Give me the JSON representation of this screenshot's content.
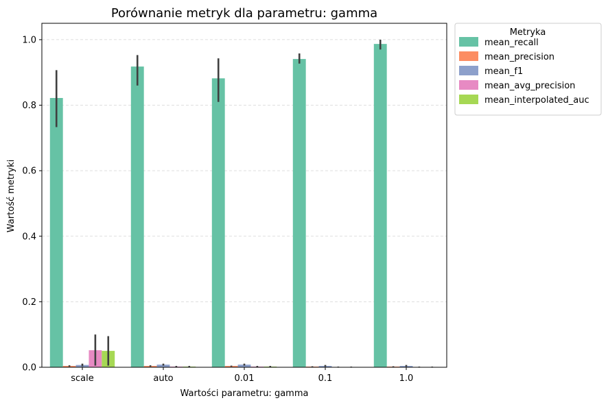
{
  "chart_data": {
    "type": "bar",
    "title": "Porównanie metryk dla parametru: gamma",
    "xlabel": "Wartości parametru: gamma",
    "ylabel": "Wartość metryki",
    "categories": [
      "scale",
      "auto",
      "0.01",
      "0.1",
      "1.0"
    ],
    "ylim": [
      0,
      1.05
    ],
    "yticks": [
      "0.0",
      "0.2",
      "0.4",
      "0.6",
      "0.8",
      "1.0"
    ],
    "grid": "horizontal dashed",
    "legend": {
      "title": "Metryka",
      "placement": "outside top-right"
    },
    "series": [
      {
        "name": "mean_recall",
        "color": "#66c2a5",
        "values": [
          0.822,
          0.918,
          0.882,
          0.941,
          0.987
        ],
        "err_low": [
          0.733,
          0.86,
          0.81,
          0.927,
          0.97
        ],
        "err_high": [
          0.907,
          0.953,
          0.943,
          0.958,
          1.0
        ]
      },
      {
        "name": "mean_precision",
        "color": "#fc8d62",
        "values": [
          0.004,
          0.004,
          0.004,
          0.002,
          0.002
        ],
        "err_low": [
          0.002,
          0.002,
          0.002,
          0.001,
          0.001
        ],
        "err_high": [
          0.006,
          0.006,
          0.005,
          0.003,
          0.003
        ]
      },
      {
        "name": "mean_f1",
        "color": "#8da0cb",
        "values": [
          0.007,
          0.008,
          0.008,
          0.004,
          0.004
        ],
        "err_low": [
          0.003,
          0.005,
          0.005,
          0.002,
          0.002
        ],
        "err_high": [
          0.011,
          0.011,
          0.011,
          0.007,
          0.007
        ]
      },
      {
        "name": "mean_avg_precision",
        "color": "#e78ac3",
        "values": [
          0.052,
          0.002,
          0.002,
          0.001,
          0.001
        ],
        "err_low": [
          0.005,
          0.0,
          0.0,
          0.0,
          0.0
        ],
        "err_high": [
          0.1,
          0.004,
          0.004,
          0.002,
          0.002
        ]
      },
      {
        "name": "mean_interpolated_auc",
        "color": "#a6d854",
        "values": [
          0.05,
          0.002,
          0.002,
          0.001,
          0.001
        ],
        "err_low": [
          0.005,
          0.0,
          0.0,
          0.0,
          0.0
        ],
        "err_high": [
          0.095,
          0.004,
          0.004,
          0.002,
          0.002
        ]
      }
    ]
  }
}
